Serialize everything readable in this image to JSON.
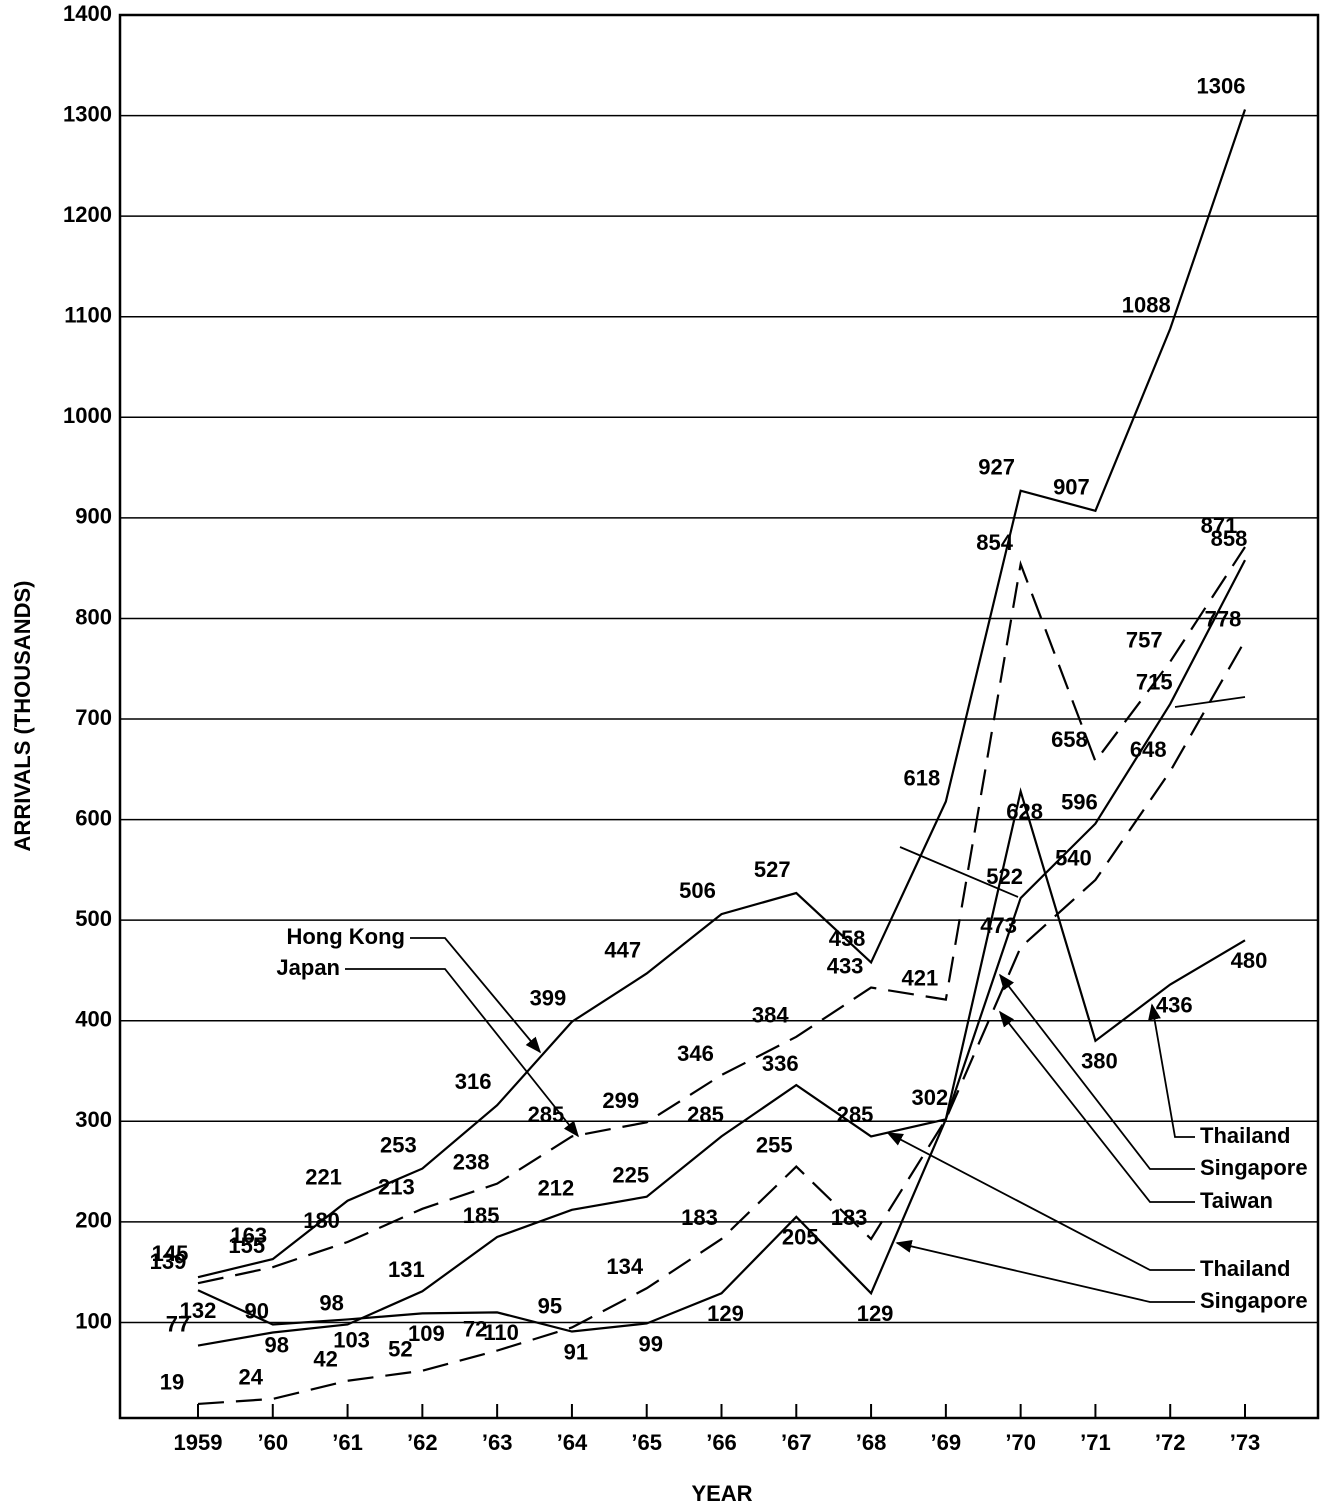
{
  "chart_data": {
    "type": "line",
    "x_label": "YEAR",
    "y_label": "ARRIVALS (THOUSANDS)",
    "categories": [
      "1959",
      "’60",
      "’61",
      "’62",
      "’63",
      "’64",
      "’65",
      "’66",
      "’67",
      "’68",
      "’69",
      "’70",
      "’71",
      "’72",
      "’73"
    ],
    "ylim": [
      5,
      1400
    ],
    "yticks": [
      100,
      200,
      300,
      400,
      500,
      600,
      700,
      800,
      900,
      1000,
      1100,
      1200,
      1300,
      1400
    ],
    "grid": true,
    "series": [
      {
        "name": "Hong Kong",
        "color": "#000000",
        "dashed": false,
        "values": [
          145,
          163,
          221,
          253,
          316,
          399,
          447,
          506,
          527,
          458,
          618,
          927,
          907,
          1088,
          1306
        ]
      },
      {
        "name": "Japan",
        "color": "#000000",
        "dashed": true,
        "values": [
          139,
          155,
          180,
          213,
          238,
          285,
          299,
          346,
          384,
          433,
          421,
          854,
          658,
          757,
          871
        ]
      },
      {
        "color": "#000000",
        "dashed": false,
        "values": [
          77,
          90,
          98,
          131,
          185,
          212,
          225,
          285,
          336,
          285,
          302,
          522,
          596,
          715,
          858
        ]
      },
      {
        "color": "#000000",
        "dashed": false,
        "values": [
          132,
          98,
          103,
          109,
          110,
          91,
          99,
          129,
          205,
          129,
          302,
          628,
          380,
          436,
          480
        ]
      },
      {
        "color": "#000000",
        "dashed": true,
        "values": [
          19,
          24,
          42,
          52,
          72,
          95,
          134,
          183,
          255,
          183,
          302,
          473,
          540,
          648,
          778
        ]
      }
    ],
    "annotations": [
      "Thailand",
      "Singapore",
      "Taiwan",
      "Thailand",
      "Singapore"
    ]
  }
}
